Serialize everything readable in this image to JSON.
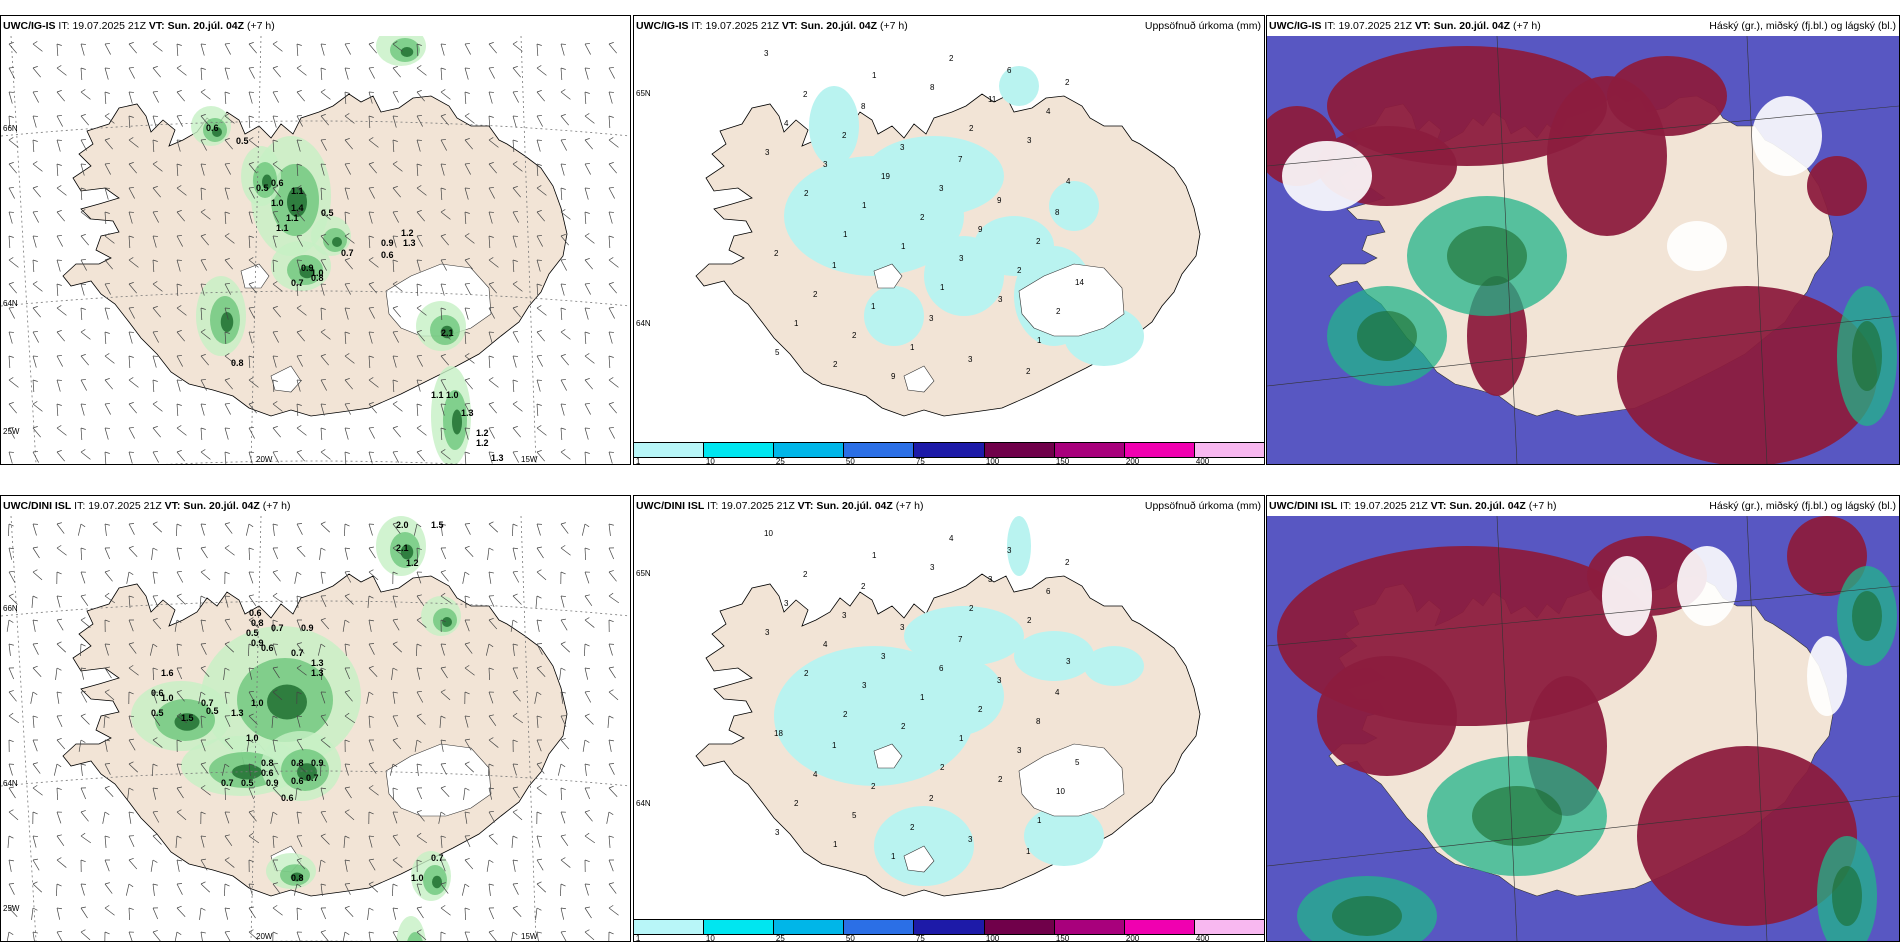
{
  "colors": {
    "land": "#f2e4d6",
    "rain_light": "#b9f3f0",
    "sea_purple": "#5857c2",
    "cloud_maroon": "#8c1c3e",
    "green_dark": "#1a6a2c",
    "green_mid": "#5fc070",
    "green_light": "#c6f0c4",
    "teal": "#22b48a"
  },
  "colorbar": {
    "colors": [
      "#b8f6f8",
      "#00e6f0",
      "#00b6e8",
      "#2b6fe6",
      "#1d1aa8",
      "#70004a",
      "#a8007c",
      "#f000b0",
      "#f8b8f0"
    ],
    "labels": [
      "1",
      "10",
      "25",
      "50",
      "75",
      "100",
      "150",
      "200",
      "400"
    ]
  },
  "panels": [
    {
      "id": "ig-wind",
      "model": "UWC/IG-IS",
      "it_label": "IT:",
      "it_value": "19.07.2025 21Z",
      "vt_label": "VT:",
      "vt_value": "Sun. 20.júl. 04Z",
      "lead": "(+7 h)",
      "right": "",
      "axis": {
        "lat_top": "66N",
        "lat_mid": "64N",
        "lat_left_bottom": "25W",
        "lon_a": "20W",
        "lon_b": "15W"
      },
      "labels": [
        "0.6",
        "0.5",
        "0.5",
        "0.6",
        "1.1",
        "1.0",
        "1.4",
        "1.1",
        "1.1",
        "0.5",
        "1.2",
        "1.3",
        "0.9",
        "0.7",
        "0.6",
        "0.9",
        "1.0",
        "0.8",
        "0.7",
        "2.1",
        "0.8",
        "1.1",
        "1.0",
        "1.3",
        "1.2",
        "1.2",
        "1.3"
      ]
    },
    {
      "id": "ig-precip",
      "model": "UWC/IG-IS",
      "it_label": "IT:",
      "it_value": "19.07.2025 21Z",
      "vt_label": "VT:",
      "vt_value": "Sun. 20.júl. 04Z",
      "lead": "(+7 h)",
      "right": "Uppsöfnuð úrkoma (mm)",
      "axis": {
        "lat_top": "65N",
        "lat_mid": "64N"
      },
      "labels": [
        "3",
        "8",
        "7",
        "8",
        "1",
        "3",
        "2",
        "2",
        "3",
        "9",
        "2",
        "1",
        "3",
        "2",
        "2",
        "3",
        "2",
        "2",
        "1",
        "6",
        "4",
        "19",
        "9",
        "14",
        "2",
        "2",
        "4",
        "3",
        "2",
        "2",
        "1",
        "9",
        "11",
        "3",
        "1",
        "3",
        "2",
        "2",
        "8",
        "3",
        "2",
        "1",
        "3",
        "5",
        "1",
        "2",
        "4",
        "1",
        "1",
        "1"
      ]
    },
    {
      "id": "ig-cloud",
      "model": "UWC/IG-IS",
      "it_label": "IT:",
      "it_value": "19.07.2025 21Z",
      "vt_label": "VT:",
      "vt_value": "Sun. 20.júl. 04Z",
      "lead": "(+7 h)",
      "right": "Háský (gr.), miðský (fj.bl.) og lágský (bl.)"
    },
    {
      "id": "dini-wind",
      "model": "UWC/DINI ISL",
      "it_label": "IT:",
      "it_value": "19.07.2025 21Z",
      "vt_label": "VT:",
      "vt_value": "Sun. 20.júl. 04Z",
      "lead": "(+7 h)",
      "right": "",
      "axis": {
        "lat_top": "66N",
        "lat_mid": "64N",
        "lat_left_bottom": "25W",
        "lon_a": "20W",
        "lon_b": "15W"
      },
      "labels": [
        "2.0",
        "1.5",
        "2.1",
        "1.2",
        "0.6",
        "0.8",
        "0.5",
        "0.9",
        "0.7",
        "0.9",
        "0.6",
        "1.3",
        "1.3",
        "0.7",
        "1.6",
        "0.6",
        "1.0",
        "0.5",
        "0.7",
        "0.5",
        "1.3",
        "1.0",
        "1.5",
        "1.0",
        "0.8",
        "0.6",
        "0.9",
        "0.8",
        "0.9",
        "0.7",
        "0.6",
        "0.7",
        "0.6",
        "0.5",
        "0.8",
        "0.7",
        "1.0"
      ]
    },
    {
      "id": "dini-precip",
      "model": "UWC/DINI ISL",
      "it_label": "IT:",
      "it_value": "19.07.2025 21Z",
      "vt_label": "VT:",
      "vt_value": "Sun. 20.júl. 04Z",
      "lead": "(+7 h)",
      "right": "Uppsöfnuð úrkoma (mm)",
      "axis": {
        "lat_top": "65N",
        "lat_mid": "64N"
      },
      "labels": [
        "10",
        "2",
        "7",
        "4",
        "1",
        "2",
        "1",
        "2",
        "3",
        "3",
        "18",
        "2",
        "3",
        "2",
        "3",
        "6",
        "8",
        "4",
        "2",
        "3",
        "3",
        "3",
        "2",
        "5",
        "5",
        "4",
        "6",
        "4",
        "1",
        "3",
        "2",
        "1",
        "3",
        "3",
        "3",
        "1",
        "10",
        "1",
        "3",
        "2",
        "2",
        "2",
        "2",
        "3",
        "1",
        "2",
        "3",
        "2",
        "2",
        "1"
      ]
    },
    {
      "id": "dini-cloud",
      "model": "UWC/DINI ISL",
      "it_label": "IT:",
      "it_value": "19.07.2025 21Z",
      "vt_label": "VT:",
      "vt_value": "Sun. 20.júl. 04Z",
      "lead": "(+7 h)",
      "right": "Háský (gr.), miðský (fj.bl.) og lágský (bl.)"
    }
  ]
}
